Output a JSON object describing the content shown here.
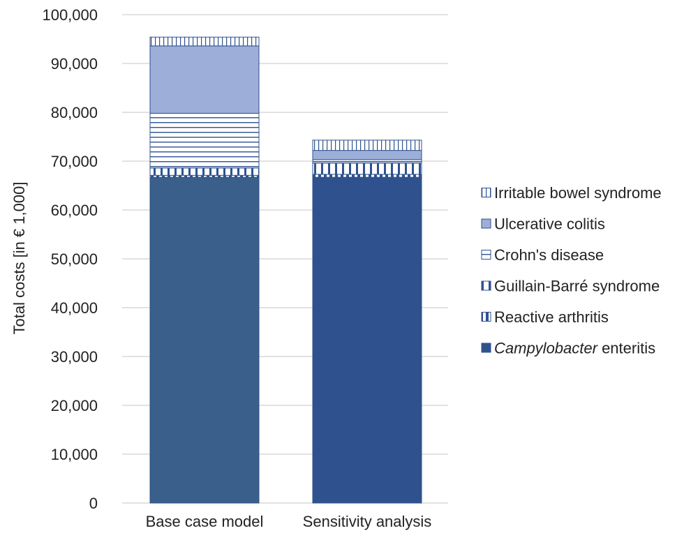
{
  "chart_data": {
    "type": "bar",
    "stacked": true,
    "categories": [
      "Base case model",
      "Sensitivity analysis"
    ],
    "ylabel": "Total costs [in € 1,000]",
    "xlabel": "",
    "ylim": [
      0,
      100000
    ],
    "yticks": [
      "0",
      "10,000",
      "20,000",
      "30,000",
      "40,000",
      "50,000",
      "60,000",
      "70,000",
      "80,000",
      "90,000",
      "100,000"
    ],
    "grid": true,
    "legend_position": "right",
    "series": [
      {
        "name": "Campylobacter enteritis",
        "name_italic": "Campylobacter",
        "name_rest": " enteritis",
        "values": [
          66700,
          66700
        ],
        "colors": [
          "#3a5f8a",
          "#2f528f"
        ],
        "pattern": "solid"
      },
      {
        "name": "Reactive arthritis",
        "values": [
          400,
          600
        ],
        "colors": [
          "#2f528f",
          "#2f528f"
        ],
        "pattern": "vertical-dense"
      },
      {
        "name": "Guillain-Barré syndrome",
        "values": [
          1500,
          2300
        ],
        "colors": [
          "#2f528f",
          "#2f528f"
        ],
        "pattern": "vertical-wide"
      },
      {
        "name": "Crohn's disease",
        "values": [
          11200,
          700
        ],
        "colors": [
          "#2f528f",
          "#2f528f"
        ],
        "pattern": "horizontal"
      },
      {
        "name": "Ulcerative colitis",
        "values": [
          13800,
          1900
        ],
        "colors": [
          "#9dafd8",
          "#9dafd8"
        ],
        "pattern": "solid"
      },
      {
        "name": "Irritable bowel syndrome",
        "values": [
          1800,
          2100
        ],
        "colors": [
          "#2f528f",
          "#2f528f"
        ],
        "pattern": "vertical-thin"
      }
    ]
  }
}
